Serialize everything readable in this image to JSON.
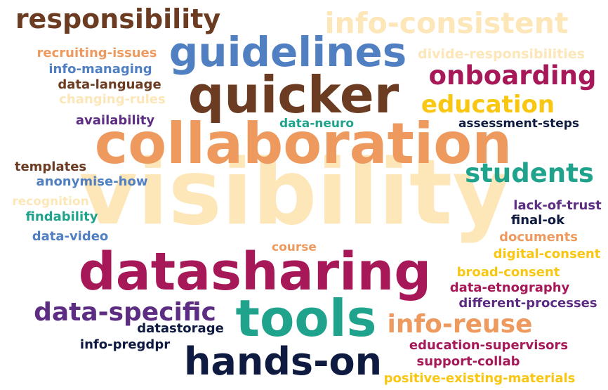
{
  "words": [
    {
      "text": "visibility",
      "color": "#fde6b8"
    },
    {
      "text": "collaboration",
      "color": "#ee9a5f"
    },
    {
      "text": "info-consistent",
      "color": "#fde6b8"
    },
    {
      "text": "divide-responsibilities",
      "color": "#fde6b8"
    },
    {
      "text": "changing-rules",
      "color": "#fde6b8"
    },
    {
      "text": "recognition",
      "color": "#fde6b8"
    },
    {
      "text": "responsibility",
      "color": "#6b3b22"
    },
    {
      "text": "quicker",
      "color": "#6b3b22"
    },
    {
      "text": "guidelines",
      "color": "#5180c2"
    },
    {
      "text": "recruiting-issues",
      "color": "#ee9a5f"
    },
    {
      "text": "info-managing",
      "color": "#5180c2"
    },
    {
      "text": "data-language",
      "color": "#6b3b22"
    },
    {
      "text": "availability",
      "color": "#5c2d82"
    },
    {
      "text": "onboarding",
      "color": "#a61858"
    },
    {
      "text": "education",
      "color": "#f9c711"
    },
    {
      "text": "data-neuro",
      "color": "#1fa38c"
    },
    {
      "text": "assessment-steps",
      "color": "#0e1a3f"
    },
    {
      "text": "students",
      "color": "#1fa38c"
    },
    {
      "text": "templates",
      "color": "#6b3b22"
    },
    {
      "text": "anonymise-how",
      "color": "#5180c2"
    },
    {
      "text": "findability",
      "color": "#1fa38c"
    },
    {
      "text": "data-video",
      "color": "#5180c2"
    },
    {
      "text": "lack-of-trust",
      "color": "#5c2d82"
    },
    {
      "text": "final-ok",
      "color": "#0e1a3f"
    },
    {
      "text": "documents",
      "color": "#ee9a5f"
    },
    {
      "text": "course",
      "color": "#ee9a5f"
    },
    {
      "text": "digital-consent",
      "color": "#f9c711"
    },
    {
      "text": "broad-consent",
      "color": "#f9c711"
    },
    {
      "text": "datasharing",
      "color": "#a61858"
    },
    {
      "text": "data-etnography",
      "color": "#a61858"
    },
    {
      "text": "different-processes",
      "color": "#5c2d82"
    },
    {
      "text": "data-specific",
      "color": "#5c2d82"
    },
    {
      "text": "tools",
      "color": "#1fa38c"
    },
    {
      "text": "info-reuse",
      "color": "#ee9a5f"
    },
    {
      "text": "datastorage",
      "color": "#0e1a3f"
    },
    {
      "text": "info-pregdpr",
      "color": "#0e1a3f"
    },
    {
      "text": "hands-on",
      "color": "#0e1a3f"
    },
    {
      "text": "education-supervisors",
      "color": "#a61858"
    },
    {
      "text": "support-collab",
      "color": "#a61858"
    },
    {
      "text": "positive-existing-materials",
      "color": "#f9c711"
    }
  ]
}
